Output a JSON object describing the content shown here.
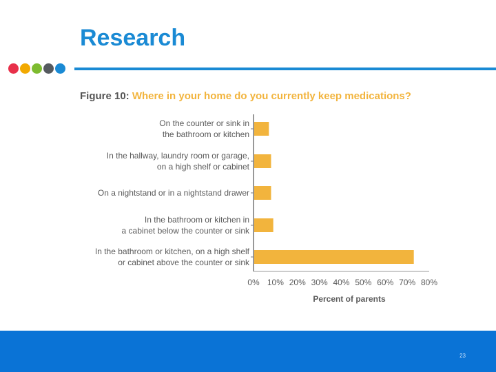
{
  "slide": {
    "title": "Research",
    "page_number": "23",
    "dot_colors": [
      "#e8304a",
      "#f2a900",
      "#7dbb2f",
      "#555a5f",
      "#1a8ad4"
    ],
    "accent_color": "#1a8ad4",
    "footer_color": "#0a73d6"
  },
  "chart_data": {
    "type": "bar",
    "orientation": "horizontal",
    "title_prefix": "Figure 10:",
    "title": "Where in your home do you currently keep medications?",
    "xlabel": "Percent of parents",
    "ylabel": "",
    "xlim": [
      0,
      80
    ],
    "xticks": [
      "0%",
      "10%",
      "20%",
      "30%",
      "40%",
      "50%",
      "60%",
      "70%",
      "80%"
    ],
    "bar_color": "#f2b43d",
    "grid": false,
    "categories": [
      [
        "On the counter or sink in",
        "the bathroom or kitchen"
      ],
      [
        "In the hallway, laundry room or garage,",
        "on a high shelf or cabinet"
      ],
      [
        "On a nightstand or in a nightstand drawer"
      ],
      [
        "In the bathroom or kitchen in",
        "a cabinet below the counter or sink"
      ],
      [
        "In the bathroom or kitchen, on a high shelf",
        "or cabinet above the counter or sink"
      ]
    ],
    "values": [
      7,
      8,
      8,
      9,
      73
    ]
  }
}
